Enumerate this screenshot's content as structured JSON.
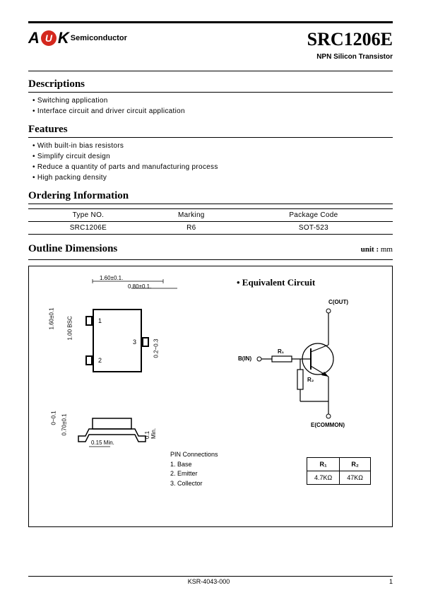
{
  "logo": {
    "text_semi": "Semiconductor",
    "oval_color": "#d4281e"
  },
  "part_number": "SRC1206E",
  "subtitle": "NPN Silicon Transistor",
  "sections": {
    "descriptions": {
      "title": "Descriptions",
      "items": [
        "Switching application",
        "Interface circuit and driver circuit application"
      ]
    },
    "features": {
      "title": "Features",
      "items": [
        "With built-in bias resistors",
        "Simplify circuit design",
        "Reduce a quantity of parts and manufacturing process",
        "High packing density"
      ]
    },
    "ordering": {
      "title": "Ordering Information"
    },
    "outline": {
      "title": "Outline Dimensions",
      "unit_label": "unit :",
      "unit_value": "mm"
    }
  },
  "order_table": {
    "headers": [
      "Type NO.",
      "Marking",
      "Package Code"
    ],
    "row": [
      "SRC1206E",
      "R6",
      "SOT-523"
    ]
  },
  "dimensions": {
    "width": "1.60±0.1.",
    "lead_w": "0.80±0.1.",
    "height": "1.60±0.1",
    "bsc": "1.00 BSC",
    "lead_h": "0.2~0.3",
    "side_thick": "0~0.1",
    "side_h": "0.70±0.1",
    "side_min1": "0.15 Min.",
    "side_min2": "0.1 Min."
  },
  "pin_numbers": [
    "1",
    "2",
    "3"
  ],
  "eq_circuit": {
    "title": "• Equivalent Circuit",
    "labels": {
      "c": "C(OUT)",
      "b": "B(IN)",
      "e": "E(COMMON)",
      "r1": "R₁",
      "r2": "R₂"
    }
  },
  "pin_conn": {
    "title": "PIN Connections",
    "items": [
      "1. Base",
      "2. Emitter",
      "3. Collector"
    ]
  },
  "r_table": {
    "headers": [
      "R₁",
      "R₂"
    ],
    "row": [
      "4.7KΩ",
      "47KΩ"
    ]
  },
  "footer": {
    "doc": "KSR-4043-000",
    "page": "1"
  },
  "colors": {
    "text": "#000000",
    "rule": "#000000",
    "bg": "#ffffff"
  }
}
